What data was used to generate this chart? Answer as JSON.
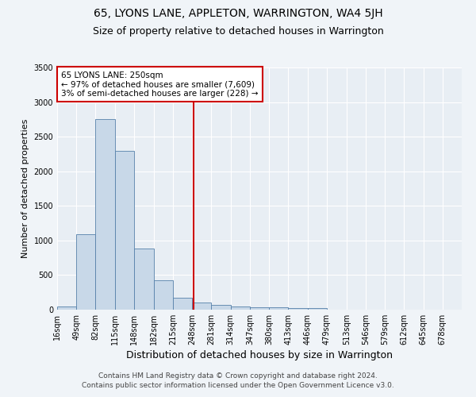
{
  "title": "65, LYONS LANE, APPLETON, WARRINGTON, WA4 5JH",
  "subtitle": "Size of property relative to detached houses in Warrington",
  "xlabel": "Distribution of detached houses by size in Warrington",
  "ylabel": "Number of detached properties",
  "bar_color": "#c8d8e8",
  "bar_edge_color": "#5580aa",
  "background_color": "#e8eef4",
  "grid_color": "#ffffff",
  "fig_background": "#f0f4f8",
  "bin_labels": [
    "16sqm",
    "49sqm",
    "82sqm",
    "115sqm",
    "148sqm",
    "182sqm",
    "215sqm",
    "248sqm",
    "281sqm",
    "314sqm",
    "347sqm",
    "380sqm",
    "413sqm",
    "446sqm",
    "479sqm",
    "513sqm",
    "546sqm",
    "579sqm",
    "612sqm",
    "645sqm",
    "678sqm"
  ],
  "bar_heights": [
    50,
    1090,
    2750,
    2300,
    880,
    420,
    170,
    100,
    70,
    50,
    30,
    35,
    25,
    20,
    5,
    3,
    2,
    2,
    1,
    1,
    1
  ],
  "bin_edges": [
    16,
    49,
    82,
    115,
    148,
    182,
    215,
    248,
    281,
    314,
    347,
    380,
    413,
    446,
    479,
    513,
    546,
    579,
    612,
    645,
    678,
    711
  ],
  "vline_x": 250,
  "vline_color": "#cc0000",
  "annotation_line1": "65 LYONS LANE: 250sqm",
  "annotation_line2": "← 97% of detached houses are smaller (7,609)",
  "annotation_line3": "3% of semi-detached houses are larger (228) →",
  "ylim": [
    0,
    3500
  ],
  "yticks": [
    0,
    500,
    1000,
    1500,
    2000,
    2500,
    3000,
    3500
  ],
  "footer1": "Contains HM Land Registry data © Crown copyright and database right 2024.",
  "footer2": "Contains public sector information licensed under the Open Government Licence v3.0.",
  "title_fontsize": 10,
  "subtitle_fontsize": 9,
  "xlabel_fontsize": 9,
  "ylabel_fontsize": 8,
  "tick_fontsize": 7,
  "annotation_fontsize": 7.5,
  "footer_fontsize": 6.5
}
